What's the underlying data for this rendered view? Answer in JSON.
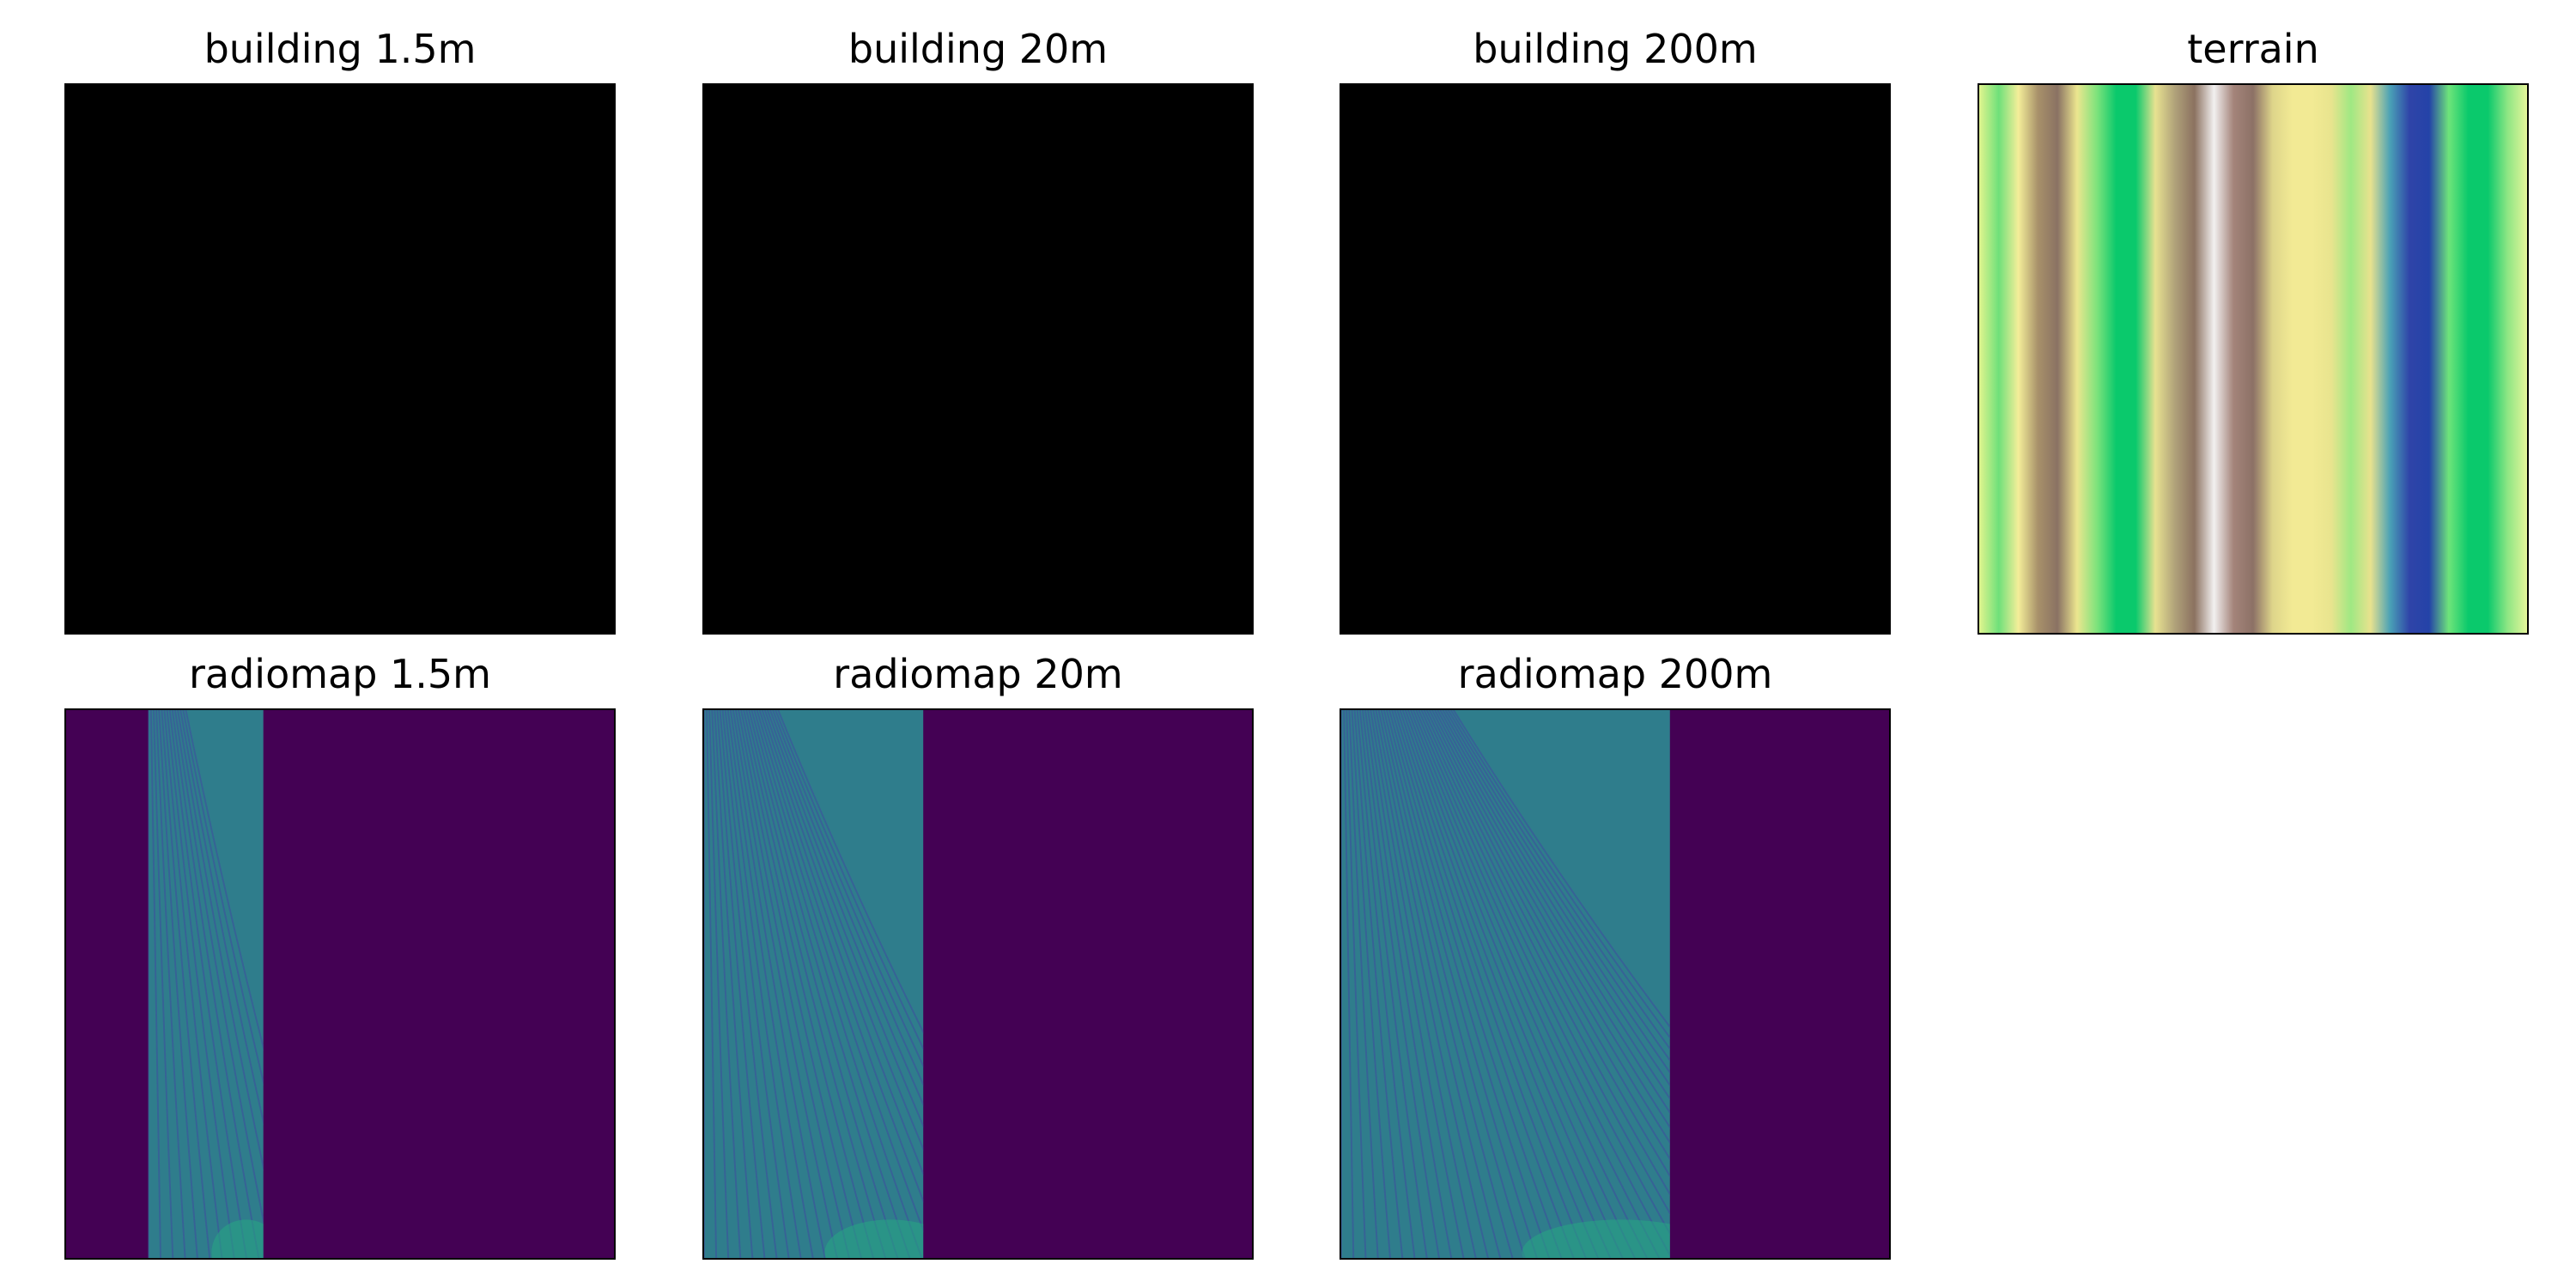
{
  "figure": {
    "panels": [
      {
        "id": "building_1_5",
        "title": "building 1.5m",
        "kind": "building"
      },
      {
        "id": "building_20",
        "title": "building 20m",
        "kind": "building"
      },
      {
        "id": "building_200",
        "title": "building 200m",
        "kind": "building"
      },
      {
        "id": "terrain",
        "title": "terrain",
        "kind": "terrain",
        "colormap": "terrain"
      },
      {
        "id": "radiomap_1_5",
        "title": "radiomap 1.5m",
        "kind": "radiomap",
        "colormap": "viridis",
        "covered_fraction": [
          0.15,
          0.36
        ]
      },
      {
        "id": "radiomap_20",
        "title": "radiomap 20m",
        "kind": "radiomap",
        "colormap": "viridis",
        "covered_fraction": [
          0.0,
          0.4
        ]
      },
      {
        "id": "radiomap_200",
        "title": "radiomap 200m",
        "kind": "radiomap",
        "colormap": "viridis",
        "covered_fraction": [
          0.0,
          0.6
        ]
      }
    ],
    "colors": {
      "building_fill": "#000000",
      "radiomap_background": "#440154",
      "radiomap_signal": "#2f7d8c",
      "radiomap_fringe": "#3b5a9a",
      "radiomap_hot": "#26a884"
    },
    "terrain_stripes": [
      "#e0f48e",
      "#6fe07a",
      "#f4ee99",
      "#a8916a",
      "#8a7263",
      "#ece68f",
      "#7fe37c",
      "#0ac96c",
      "#0ac96c",
      "#e8e290",
      "#b0a27a",
      "#8b7160",
      "#f2f0f0",
      "#a4847a",
      "#8c7166",
      "#ded58a",
      "#f2ea94",
      "#f2ea94",
      "#e8e48e",
      "#9fe883",
      "#e8e28e",
      "#4aa1b6",
      "#2f44a8",
      "#2443a8",
      "#6ee47a",
      "#0ac96c",
      "#0ac96c",
      "#8ee684",
      "#e5f59a"
    ]
  }
}
